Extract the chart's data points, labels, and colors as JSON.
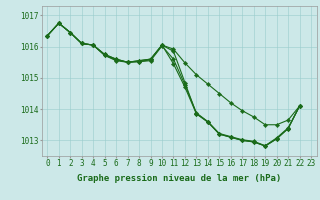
{
  "background_color": "#cce8e8",
  "plot_bg_color": "#cce8e8",
  "grid_color": "#99cccc",
  "line_color": "#1a6b1a",
  "marker_color": "#1a6b1a",
  "xlabel": "Graphe pression niveau de la mer (hPa)",
  "xlabel_fontsize": 6.5,
  "tick_fontsize": 5.5,
  "xlim": [
    -0.5,
    23.5
  ],
  "ylim": [
    1012.5,
    1017.3
  ],
  "yticks": [
    1013,
    1014,
    1015,
    1016,
    1017
  ],
  "xticks": [
    0,
    1,
    2,
    3,
    4,
    5,
    6,
    7,
    8,
    9,
    10,
    11,
    12,
    13,
    14,
    15,
    16,
    17,
    18,
    19,
    20,
    21,
    22,
    23
  ],
  "series1": {
    "x": [
      0,
      1,
      2,
      3,
      4,
      5,
      6,
      7,
      8,
      9,
      10,
      11,
      12,
      13,
      14,
      15,
      16,
      17,
      18,
      19,
      20,
      21,
      22
    ],
    "y": [
      1016.35,
      1016.75,
      1016.45,
      1016.1,
      1016.05,
      1015.75,
      1015.6,
      1015.5,
      1015.55,
      1015.6,
      1016.05,
      1015.85,
      1014.85,
      1013.85,
      1013.6,
      1013.2,
      1013.1,
      1013.0,
      1012.95,
      1012.82,
      1013.05,
      1013.38,
      1014.1
    ]
  },
  "series2": {
    "x": [
      0,
      1,
      2,
      3,
      4,
      5,
      6,
      7,
      8,
      9,
      10,
      11,
      12,
      13,
      14,
      15,
      16,
      17,
      18,
      19,
      20,
      21,
      22
    ],
    "y": [
      1016.35,
      1016.75,
      1016.45,
      1016.1,
      1016.05,
      1015.75,
      1015.6,
      1015.5,
      1015.55,
      1015.6,
      1016.05,
      1015.45,
      1014.7,
      1013.85,
      1013.58,
      1013.2,
      1013.1,
      1013.0,
      1012.95,
      1012.82,
      1013.05,
      1013.38,
      1014.1
    ]
  },
  "series3": {
    "x": [
      0,
      1,
      2,
      3,
      4,
      5,
      6,
      7,
      8,
      9,
      10,
      11,
      12,
      13,
      14,
      15,
      16,
      17,
      18,
      19,
      20,
      21,
      22
    ],
    "y": [
      1016.35,
      1016.75,
      1016.45,
      1016.1,
      1016.05,
      1015.72,
      1015.58,
      1015.5,
      1015.52,
      1015.58,
      1016.05,
      1015.92,
      1015.48,
      1015.1,
      1014.8,
      1014.5,
      1014.2,
      1013.95,
      1013.75,
      1013.5,
      1013.5,
      1013.65,
      1014.1
    ]
  },
  "series4": {
    "x": [
      0,
      1,
      2,
      3,
      4,
      5,
      6,
      7,
      8,
      9,
      10,
      11,
      12,
      13,
      14,
      15,
      16,
      17,
      18,
      19,
      20,
      21,
      22
    ],
    "y": [
      1016.35,
      1016.75,
      1016.45,
      1016.1,
      1016.05,
      1015.72,
      1015.55,
      1015.5,
      1015.52,
      1015.55,
      1016.02,
      1015.6,
      1014.78,
      1013.88,
      1013.6,
      1013.22,
      1013.12,
      1013.02,
      1012.97,
      1012.83,
      1013.08,
      1013.4,
      1014.1
    ]
  }
}
